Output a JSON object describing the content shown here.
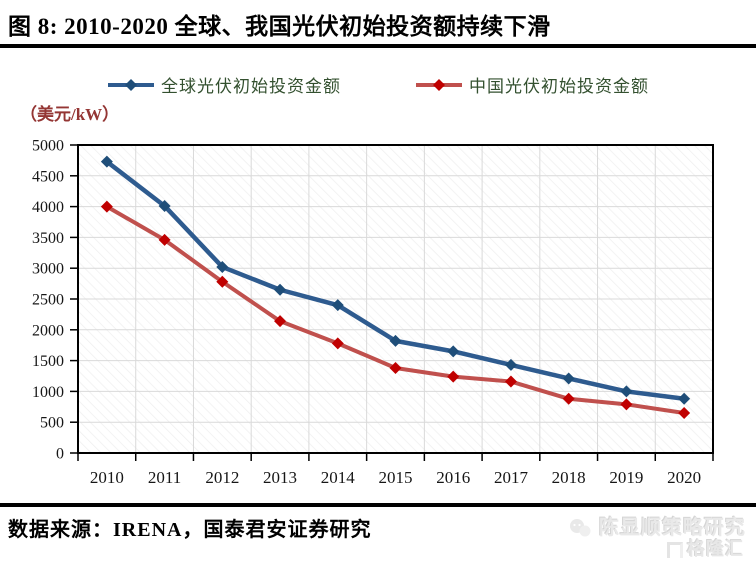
{
  "title": "图 8: 2010-2020 全球、我国光伏初始投资额持续下滑",
  "footer": {
    "source": "数据来源：IRENA，国泰君安证券研究",
    "watermark_line1": "陈显顺策略研究",
    "watermark_line2": "格隆汇"
  },
  "colors": {
    "global_line": "#2e5b8f",
    "global_marker": "#1f4e79",
    "china_line": "#c0504d",
    "china_marker": "#c00000",
    "gridline": "#d9d9d9",
    "plot_border": "#000000",
    "axis_text": "#161616",
    "unit_text": "#943634",
    "legend_text": "#33502f"
  },
  "chart_data": {
    "type": "line",
    "title": "图 8: 2010-2020 全球、我国光伏初始投资额持续下滑",
    "ylabel": "（美元/kW）",
    "xlabel": "",
    "ylim": [
      0,
      5000
    ],
    "ytick_step": 500,
    "grid": true,
    "legend_position": "top",
    "categories": [
      "2010",
      "2011",
      "2012",
      "2013",
      "2014",
      "2015",
      "2016",
      "2017",
      "2018",
      "2019",
      "2020"
    ],
    "series": [
      {
        "name": "全球光伏初始投资金额",
        "values": [
          4730,
          4010,
          3020,
          2650,
          2400,
          1820,
          1650,
          1430,
          1210,
          1000,
          880
        ]
      },
      {
        "name": "中国光伏初始投资金额",
        "values": [
          4000,
          3460,
          2780,
          2140,
          1780,
          1380,
          1240,
          1160,
          880,
          790,
          650
        ]
      }
    ]
  }
}
